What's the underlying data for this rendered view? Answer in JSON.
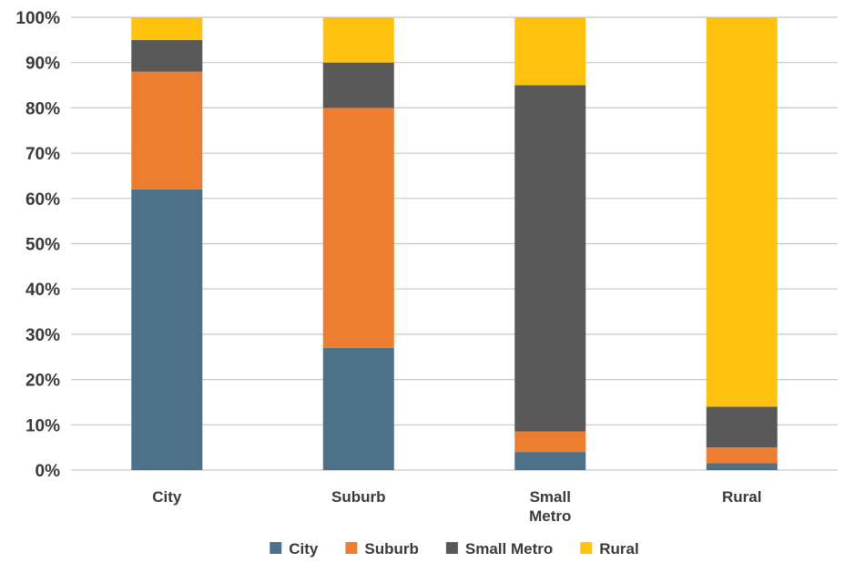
{
  "chart_data": {
    "type": "bar",
    "stacked": true,
    "title": "",
    "xlabel": "",
    "ylabel": "",
    "ylim": [
      0,
      100
    ],
    "yticks": [
      "0%",
      "10%",
      "20%",
      "30%",
      "40%",
      "50%",
      "60%",
      "70%",
      "80%",
      "90%",
      "100%"
    ],
    "categories": [
      [
        "City"
      ],
      [
        "Suburb"
      ],
      [
        "Small",
        "Metro"
      ],
      [
        "Rural"
      ]
    ],
    "series": [
      {
        "name": "City",
        "color": "#4c7188",
        "values": [
          62,
          27,
          4,
          1.5
        ]
      },
      {
        "name": "Suburb",
        "color": "#ed7d31",
        "values": [
          26,
          53,
          4.5,
          3.5
        ]
      },
      {
        "name": "Small Metro",
        "color": "#595959",
        "values": [
          7,
          10,
          76.5,
          9
        ]
      },
      {
        "name": "Rural",
        "color": "#ffc20e",
        "values": [
          5,
          10,
          15,
          86
        ]
      }
    ],
    "grid": true,
    "legend_position": "bottom"
  }
}
